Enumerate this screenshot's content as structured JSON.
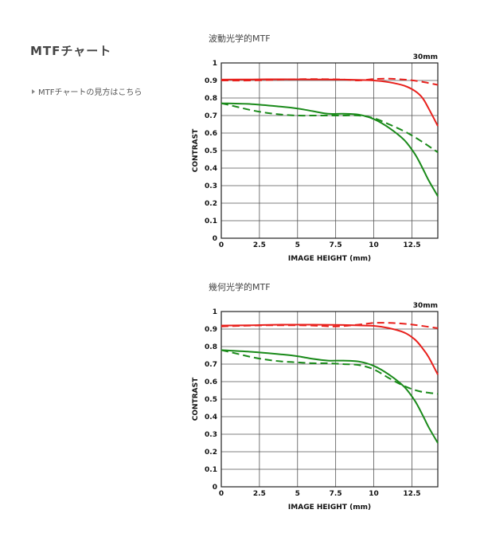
{
  "page": {
    "title": "MTFチャート",
    "guide_link": "MTFチャートの見方はこちら"
  },
  "chart_data": [
    {
      "type": "line",
      "title": "波動光学的MTF",
      "unit_label": "30mm",
      "xlabel": "IMAGE HEIGHT (mm)",
      "ylabel": "CONTRAST",
      "xlim": [
        0,
        14.2
      ],
      "ylim": [
        0,
        1
      ],
      "xticks": [
        0,
        2.5,
        5,
        7.5,
        10,
        12.5
      ],
      "xtick_labels": [
        "0",
        "2.5",
        "5",
        "7.5",
        "10",
        "12.5"
      ],
      "yticks": [
        0,
        0.1,
        0.2,
        0.3,
        0.4,
        0.5,
        0.6,
        0.7,
        0.8,
        0.9,
        1
      ],
      "ytick_labels": [
        "0",
        "0.1",
        "0.2",
        "0.3",
        "0.4",
        "0.5",
        "0.6",
        "0.7",
        "0.8",
        "0.9",
        "1"
      ],
      "grid": true,
      "series": [
        {
          "color": "#e8201c",
          "dash": false,
          "x": [
            0,
            2,
            4,
            6,
            8,
            10,
            11,
            12,
            12.7,
            13.2,
            13.6,
            14.2
          ],
          "y": [
            0.905,
            0.906,
            0.907,
            0.906,
            0.905,
            0.9,
            0.89,
            0.87,
            0.84,
            0.8,
            0.74,
            0.64
          ]
        },
        {
          "color": "#e8201c",
          "dash": true,
          "x": [
            0,
            2,
            4,
            6,
            8,
            9,
            10,
            11,
            12,
            13,
            14.2
          ],
          "y": [
            0.9,
            0.9,
            0.905,
            0.908,
            0.905,
            0.9,
            0.908,
            0.91,
            0.905,
            0.895,
            0.875
          ]
        },
        {
          "color": "#1a8a1a",
          "dash": false,
          "x": [
            0,
            2,
            4,
            5,
            6,
            7,
            8,
            9,
            10,
            11,
            12,
            12.7,
            13.2,
            13.6,
            14.2
          ],
          "y": [
            0.77,
            0.765,
            0.75,
            0.74,
            0.725,
            0.71,
            0.71,
            0.705,
            0.68,
            0.63,
            0.56,
            0.48,
            0.4,
            0.33,
            0.24
          ]
        },
        {
          "color": "#1a8a1a",
          "dash": true,
          "x": [
            0,
            1,
            2,
            3,
            4,
            5,
            6,
            7,
            8,
            9,
            10,
            11,
            12,
            13,
            14.2
          ],
          "y": [
            0.77,
            0.75,
            0.73,
            0.715,
            0.705,
            0.7,
            0.7,
            0.7,
            0.7,
            0.7,
            0.685,
            0.65,
            0.61,
            0.56,
            0.49
          ]
        }
      ]
    },
    {
      "type": "line",
      "title": "幾何光学的MTF",
      "unit_label": "30mm",
      "xlabel": "IMAGE HEIGHT (mm)",
      "ylabel": "CONTRAST",
      "xlim": [
        0,
        14.2
      ],
      "ylim": [
        0,
        1
      ],
      "xticks": [
        0,
        2.5,
        5,
        7.5,
        10,
        12.5
      ],
      "xtick_labels": [
        "0",
        "2.5",
        "5",
        "7.5",
        "10",
        "12.5"
      ],
      "yticks": [
        0,
        0.1,
        0.2,
        0.3,
        0.4,
        0.5,
        0.6,
        0.7,
        0.8,
        0.9,
        1
      ],
      "ytick_labels": [
        "0",
        "0.1",
        "0.2",
        "0.3",
        "0.4",
        "0.5",
        "0.6",
        "0.7",
        "0.8",
        "0.9",
        "1"
      ],
      "grid": true,
      "series": [
        {
          "color": "#e8201c",
          "dash": false,
          "x": [
            0,
            2,
            4,
            6,
            8,
            10,
            11,
            12,
            12.7,
            13.2,
            13.6,
            14.2
          ],
          "y": [
            0.92,
            0.922,
            0.925,
            0.925,
            0.923,
            0.918,
            0.905,
            0.88,
            0.84,
            0.79,
            0.74,
            0.64
          ]
        },
        {
          "color": "#e8201c",
          "dash": true,
          "x": [
            0,
            2,
            4,
            6,
            7.5,
            9,
            10,
            11,
            12,
            13,
            14.2
          ],
          "y": [
            0.915,
            0.92,
            0.922,
            0.92,
            0.915,
            0.925,
            0.935,
            0.935,
            0.93,
            0.92,
            0.905
          ]
        },
        {
          "color": "#1a8a1a",
          "dash": false,
          "x": [
            0,
            2,
            4,
            5,
            6,
            7,
            8,
            9,
            10,
            11,
            12,
            12.7,
            13.2,
            13.6,
            14.2
          ],
          "y": [
            0.78,
            0.77,
            0.755,
            0.745,
            0.73,
            0.72,
            0.72,
            0.715,
            0.69,
            0.64,
            0.57,
            0.49,
            0.41,
            0.34,
            0.25
          ]
        },
        {
          "color": "#1a8a1a",
          "dash": true,
          "x": [
            0,
            1,
            2,
            3,
            4,
            5,
            6,
            7,
            8,
            9,
            10,
            11,
            12,
            13,
            14.2
          ],
          "y": [
            0.78,
            0.76,
            0.74,
            0.725,
            0.715,
            0.71,
            0.705,
            0.705,
            0.7,
            0.695,
            0.67,
            0.62,
            0.575,
            0.545,
            0.53
          ]
        }
      ]
    }
  ]
}
